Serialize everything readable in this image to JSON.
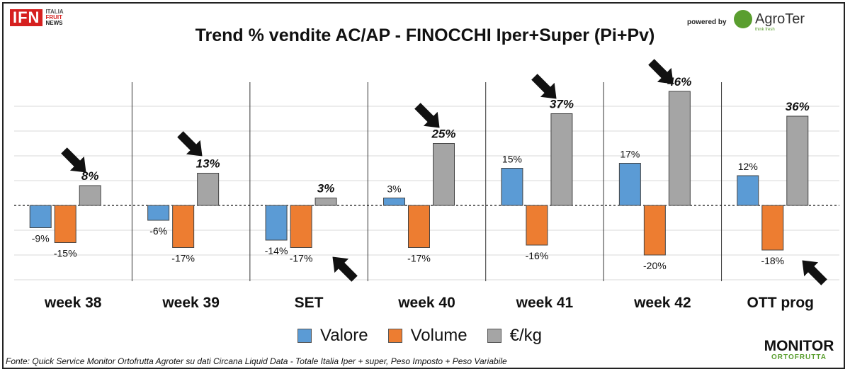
{
  "header": {
    "logo_text": "IFN",
    "logo_sub": [
      "ITALIA",
      "FRUIT",
      "NEWS"
    ],
    "powered_by": "powered by",
    "brand": "AgroTer",
    "brand_tagline": "think fresh"
  },
  "chart_data": {
    "type": "bar",
    "title": "Trend % vendite AC/AP - FINOCCHI  Iper+Super (Pi+Pv)",
    "categories": [
      "week 38",
      "week 39",
      "SET",
      "week 40",
      "week 41",
      "week 42",
      "OTT prog"
    ],
    "series": [
      {
        "name": "Valore",
        "color": "#5b9bd5",
        "values": [
          -9,
          -6,
          -14,
          3,
          15,
          17,
          12
        ],
        "labels": [
          "-9%",
          "-6%",
          "-14%",
          "3%",
          "15%",
          "17%",
          "12%"
        ]
      },
      {
        "name": "Volume",
        "color": "#ed7d31",
        "values": [
          -15,
          -17,
          -17,
          -17,
          -16,
          -20,
          -18
        ],
        "labels": [
          "-15%",
          "-17%",
          "-17%",
          "-17%",
          "-16%",
          "-20%",
          "-18%"
        ]
      },
      {
        "name": "€/kg",
        "color": "#a5a5a5",
        "values": [
          8,
          13,
          3,
          25,
          37,
          46,
          36
        ],
        "labels": [
          "8%",
          "13%",
          "3%",
          "25%",
          "37%",
          "46%",
          "36%"
        ]
      }
    ],
    "ylim": [
      -30,
      50
    ],
    "grid": true,
    "legend_position": "bottom"
  },
  "footer": {
    "source": "Fonte: Quick Service Monitor Ortofrutta Agroter su dati Circana Liquid Data - Totale Italia Iper + super, Peso Imposto + Peso Variabile",
    "monitor_line1": "MONITOR",
    "monitor_line2": "ORTOFRUTTA"
  }
}
